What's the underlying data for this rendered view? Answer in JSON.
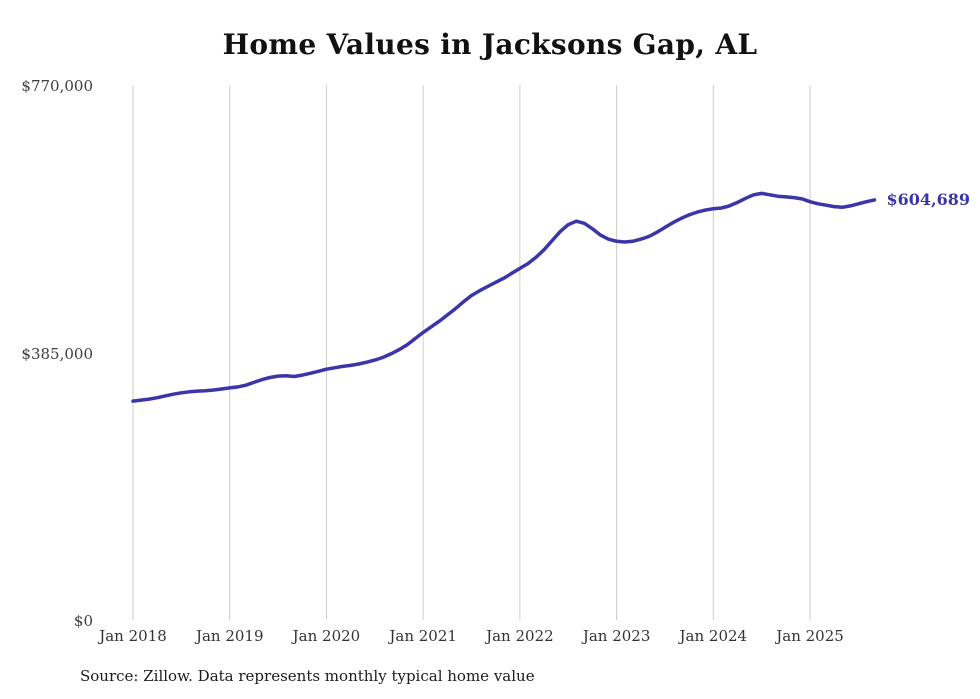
{
  "page": {
    "source_note": "Source: Zillow. Data represents monthly typical home value"
  },
  "chart_data": {
    "type": "line",
    "title": "Home Values in Jacksons Gap, AL",
    "series_name": "Monthly typical home value",
    "ylim": [
      0,
      770000
    ],
    "grid": "vertical-only",
    "legend": "none",
    "line_color": "#3a35a8",
    "grid_color": "#cccccc",
    "end_label": "$604,689",
    "end_value": 604689,
    "yticks": [
      {
        "label": "$770,000",
        "value": 770000
      },
      {
        "label": "$385,000",
        "value": 385000
      },
      {
        "label": "$0",
        "value": 0
      }
    ],
    "xticks": [
      {
        "label": "Jan 2018",
        "month_index": 0
      },
      {
        "label": "Jan 2019",
        "month_index": 12
      },
      {
        "label": "Jan 2020",
        "month_index": 24
      },
      {
        "label": "Jan 2021",
        "month_index": 36
      },
      {
        "label": "Jan 2022",
        "month_index": 48
      },
      {
        "label": "Jan 2023",
        "month_index": 60
      },
      {
        "label": "Jan 2024",
        "month_index": 72
      },
      {
        "label": "Jan 2025",
        "month_index": 84
      }
    ],
    "x_start": "2018-01",
    "x_end": "2025-09",
    "x": [
      "2018-01",
      "2018-02",
      "2018-03",
      "2018-04",
      "2018-05",
      "2018-06",
      "2018-07",
      "2018-08",
      "2018-09",
      "2018-10",
      "2018-11",
      "2018-12",
      "2019-01",
      "2019-02",
      "2019-03",
      "2019-04",
      "2019-05",
      "2019-06",
      "2019-07",
      "2019-08",
      "2019-09",
      "2019-10",
      "2019-11",
      "2019-12",
      "2020-01",
      "2020-02",
      "2020-03",
      "2020-04",
      "2020-05",
      "2020-06",
      "2020-07",
      "2020-08",
      "2020-09",
      "2020-10",
      "2020-11",
      "2020-12",
      "2021-01",
      "2021-02",
      "2021-03",
      "2021-04",
      "2021-05",
      "2021-06",
      "2021-07",
      "2021-08",
      "2021-09",
      "2021-10",
      "2021-11",
      "2021-12",
      "2022-01",
      "2022-02",
      "2022-03",
      "2022-04",
      "2022-05",
      "2022-06",
      "2022-07",
      "2022-08",
      "2022-09",
      "2022-10",
      "2022-11",
      "2022-12",
      "2023-01",
      "2023-02",
      "2023-03",
      "2023-04",
      "2023-05",
      "2023-06",
      "2023-07",
      "2023-08",
      "2023-09",
      "2023-10",
      "2023-11",
      "2023-12",
      "2024-01",
      "2024-02",
      "2024-03",
      "2024-04",
      "2024-05",
      "2024-06",
      "2024-07",
      "2024-08",
      "2024-09",
      "2024-10",
      "2024-11",
      "2024-12",
      "2025-01",
      "2025-02",
      "2025-03",
      "2025-04",
      "2025-05",
      "2025-06",
      "2025-07",
      "2025-08",
      "2025-09"
    ],
    "values": [
      315000,
      316500,
      318000,
      320000,
      322500,
      325000,
      327000,
      328500,
      329500,
      330000,
      331000,
      332500,
      334000,
      335500,
      338000,
      342000,
      346000,
      349000,
      351000,
      351500,
      350500,
      352500,
      355000,
      358000,
      361000,
      363000,
      365000,
      366500,
      368500,
      371000,
      374000,
      378000,
      383000,
      389000,
      396000,
      405000,
      414000,
      422000,
      430000,
      439000,
      448000,
      458000,
      467000,
      474000,
      480000,
      486000,
      492000,
      499000,
      506000,
      513000,
      522000,
      533000,
      546000,
      559000,
      569000,
      574000,
      571000,
      563000,
      554000,
      548000,
      545000,
      544000,
      545000,
      548000,
      552000,
      558000,
      565000,
      572000,
      578000,
      583000,
      587000,
      590000,
      592000,
      593000,
      596000,
      601000,
      607000,
      612000,
      614000,
      612000,
      610000,
      609000,
      608000,
      606000,
      602000,
      599000,
      597000,
      595000,
      594000,
      596000,
      599000,
      602000,
      604689
    ]
  }
}
